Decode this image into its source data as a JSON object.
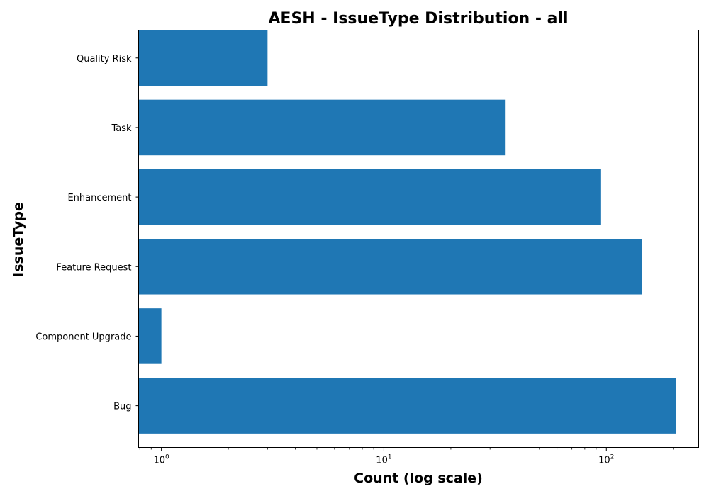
{
  "chart_data": {
    "type": "bar",
    "orientation": "horizontal",
    "title": "AESH - IssueType Distribution - all",
    "xlabel": "Count (log scale)",
    "ylabel": "IssueType",
    "x_scale": "log",
    "xlim": [
      0.79,
      260
    ],
    "x_ticks": [
      {
        "value": 1,
        "base": "10",
        "exp": "0"
      },
      {
        "value": 10,
        "base": "10",
        "exp": "1"
      },
      {
        "value": 100,
        "base": "10",
        "exp": "2"
      }
    ],
    "categories": [
      "Bug",
      "Component Upgrade",
      "Feature Request",
      "Enhancement",
      "Task",
      "Quality Risk"
    ],
    "values": [
      206,
      1,
      145,
      94,
      35,
      3
    ],
    "bar_color": "#1f77b4",
    "grid": false,
    "legend": "none"
  }
}
